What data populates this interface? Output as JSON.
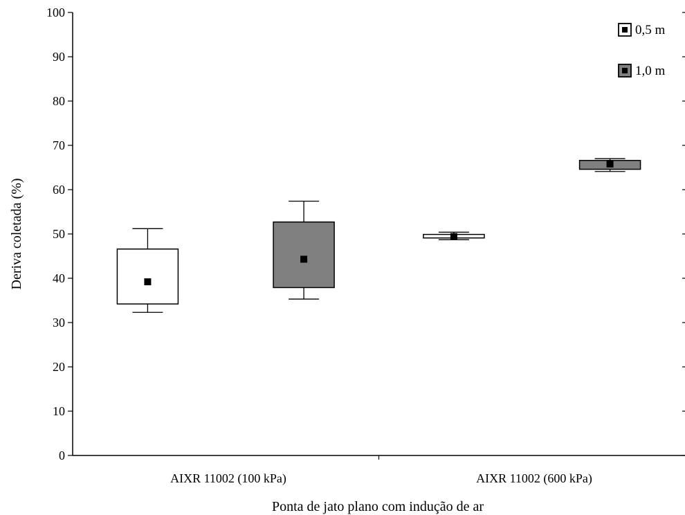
{
  "chart_data": {
    "type": "box",
    "xlabel": "Ponta de jato plano com indução de ar",
    "ylabel": "Deriva coletada (%)",
    "ylim": [
      0,
      100
    ],
    "yticks": [
      0,
      10,
      20,
      30,
      40,
      50,
      60,
      70,
      80,
      90,
      100
    ],
    "categories": [
      "AIXR 11002 (100 kPa)",
      "AIXR 11002 (600 kPa)"
    ],
    "legend_position": "top-right",
    "series": [
      {
        "name": "0,5 m",
        "color": "#ffffff",
        "boxes": [
          {
            "category": "AIXR 11002 (100 kPa)",
            "whisker_low": 32.3,
            "box_low": 34.2,
            "mean": 39.2,
            "box_high": 46.6,
            "whisker_high": 51.2
          },
          {
            "category": "AIXR 11002 (600 kPa)",
            "whisker_low": 48.7,
            "box_low": 49.1,
            "mean": 49.4,
            "box_high": 49.9,
            "whisker_high": 50.4
          }
        ]
      },
      {
        "name": "1,0 m",
        "color": "#808080",
        "boxes": [
          {
            "category": "AIXR 11002 (100 kPa)",
            "whisker_low": 35.3,
            "box_low": 37.9,
            "mean": 44.3,
            "box_high": 52.7,
            "whisker_high": 57.4
          },
          {
            "category": "AIXR 11002 (600 kPa)",
            "whisker_low": 64.1,
            "box_low": 64.6,
            "mean": 65.8,
            "box_high": 66.6,
            "whisker_high": 67.0
          }
        ]
      }
    ]
  }
}
